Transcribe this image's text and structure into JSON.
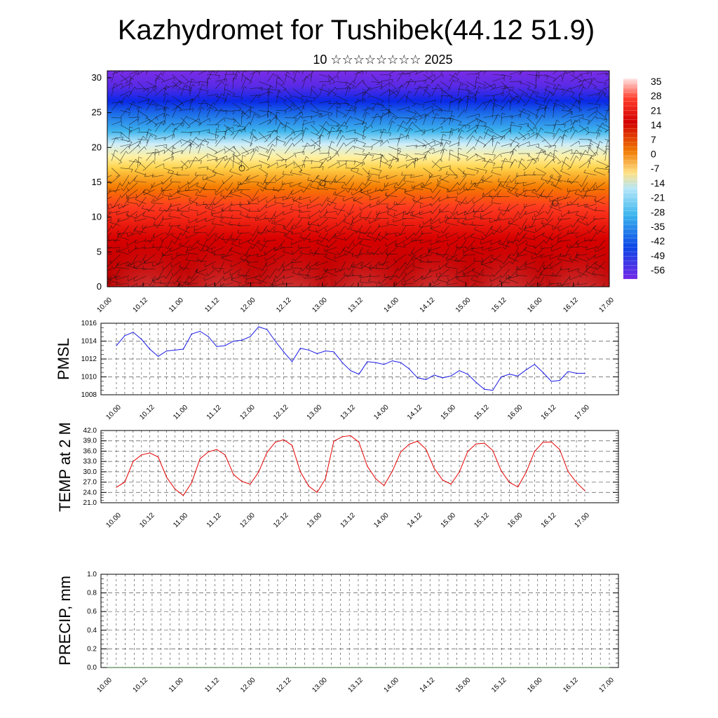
{
  "header": {
    "title": "Kazhydromet for Tushibek(44.12 51.9)",
    "subtitle": "10 ☆☆☆☆☆☆☆☆ 2025"
  },
  "colors": {
    "pmsl_line": "#1a1ae6",
    "temp_line": "#e60000",
    "precip_line": "#2e6b2e",
    "frame": "#000000"
  },
  "colorbar": {
    "labels": [
      "35",
      "28",
      "21",
      "14",
      "7",
      "0",
      "-7",
      "-14",
      "-21",
      "-28",
      "-35",
      "-42",
      "-49",
      "-56"
    ],
    "colors": [
      "#ffe6e6",
      "#ff3c2a",
      "#d20000",
      "#f07800",
      "#ffe084",
      "#b4e6f8",
      "#3cb6ee",
      "#0a46e6",
      "#7328e6"
    ]
  },
  "chart_data": [
    {
      "type": "heatmap",
      "title": "",
      "xlabel": "",
      "ylabel": "",
      "ylim": [
        0,
        31
      ],
      "yticks": [
        "0",
        "5",
        "10",
        "15",
        "20",
        "25",
        "30"
      ],
      "xticks": [
        "10.00",
        "10.12",
        "11.00",
        "11.12",
        "12.00",
        "12.12",
        "13.00",
        "13.12",
        "14.00",
        "14.12",
        "15.00",
        "15.12",
        "16.00",
        "16.12",
        "17.00"
      ],
      "grid": false,
      "note_levels": [
        0,
        5,
        10,
        15,
        20,
        25,
        30
      ],
      "overlay": "wind barbs"
    },
    {
      "type": "line",
      "ylabel": "PMSL",
      "ylim": [
        1008,
        1016
      ],
      "yticks": [
        "1008",
        "1010",
        "1012",
        "1014",
        "1016"
      ],
      "xticks": [
        "10.00",
        "10.12",
        "11.00",
        "11.12",
        "12.00",
        "12.12",
        "13.00",
        "13.12",
        "14.00",
        "14.12",
        "15.00",
        "15.12",
        "16.00",
        "16.12",
        "17.00"
      ],
      "grid": true,
      "series": [
        {
          "values": [
            1013.5,
            1014.6,
            1015.0,
            1014.2,
            1013.1,
            1012.3,
            1012.9,
            1013.0,
            1013.1,
            1014.8,
            1015.1,
            1014.5,
            1013.4,
            1013.5,
            1014.0,
            1014.1,
            1014.5,
            1015.6,
            1015.3,
            1014.0,
            1012.8,
            1011.7,
            1013.2,
            1013.0,
            1012.6,
            1012.9,
            1012.8,
            1011.6,
            1010.7,
            1010.3,
            1011.7,
            1011.6,
            1011.4,
            1011.8,
            1011.6,
            1010.9,
            1009.9,
            1009.7,
            1010.2,
            1009.9,
            1010.1,
            1010.7,
            1010.3,
            1009.4,
            1008.6,
            1008.5,
            1010.0,
            1010.3,
            1010.1,
            1010.8,
            1011.4,
            1010.5,
            1009.5,
            1009.6,
            1010.6,
            1010.4,
            1010.4
          ]
        }
      ]
    },
    {
      "type": "line",
      "ylabel": "TEMP at 2 M",
      "ylim": [
        21,
        42
      ],
      "yticks": [
        "21.0",
        "24.0",
        "27.0",
        "30.0",
        "33.0",
        "36.0",
        "39.0",
        "42.0"
      ],
      "xticks": [
        "10.00",
        "10.12",
        "11.00",
        "11.12",
        "12.00",
        "12.12",
        "13.00",
        "13.12",
        "14.00",
        "14.12",
        "15.00",
        "15.12",
        "16.00",
        "16.12",
        "17.00"
      ],
      "grid": true,
      "series": [
        {
          "values": [
            25.5,
            27.0,
            33.0,
            34.9,
            35.5,
            34.3,
            28.4,
            25.0,
            23.1,
            26.9,
            33.8,
            35.8,
            36.5,
            34.9,
            29.2,
            27.2,
            26.4,
            29.9,
            35.6,
            38.6,
            39.3,
            37.7,
            30.0,
            25.8,
            24.0,
            28.0,
            38.9,
            40.2,
            40.5,
            38.6,
            31.6,
            28.0,
            26.0,
            30.2,
            35.8,
            38.0,
            38.9,
            36.6,
            31.0,
            27.6,
            26.4,
            29.9,
            35.9,
            38.1,
            38.3,
            36.2,
            30.3,
            26.9,
            25.6,
            29.9,
            35.9,
            38.6,
            38.7,
            36.5,
            30.1,
            26.9,
            24.5
          ]
        }
      ]
    },
    {
      "type": "line",
      "ylabel": "PRECIP, mm",
      "ylim": [
        0,
        1
      ],
      "yticks": [
        "0.0",
        "0.2",
        "0.4",
        "0.6",
        "0.8",
        "1.0"
      ],
      "xticks": [
        "10.00",
        "10.12",
        "11.00",
        "11.12",
        "12.00",
        "12.12",
        "13.00",
        "13.12",
        "14.00",
        "14.12",
        "15.00",
        "15.12",
        "16.00",
        "16.12",
        "17.00"
      ],
      "grid": true,
      "series": [
        {
          "values": [
            0,
            0,
            0,
            0,
            0,
            0,
            0,
            0,
            0,
            0,
            0,
            0,
            0,
            0,
            0,
            0,
            0,
            0,
            0,
            0,
            0,
            0,
            0,
            0,
            0,
            0,
            0,
            0,
            0,
            0,
            0,
            0,
            0,
            0,
            0,
            0,
            0,
            0,
            0,
            0,
            0,
            0,
            0,
            0,
            0,
            0,
            0,
            0,
            0,
            0,
            0,
            0,
            0,
            0,
            0,
            0,
            0
          ]
        }
      ]
    }
  ]
}
